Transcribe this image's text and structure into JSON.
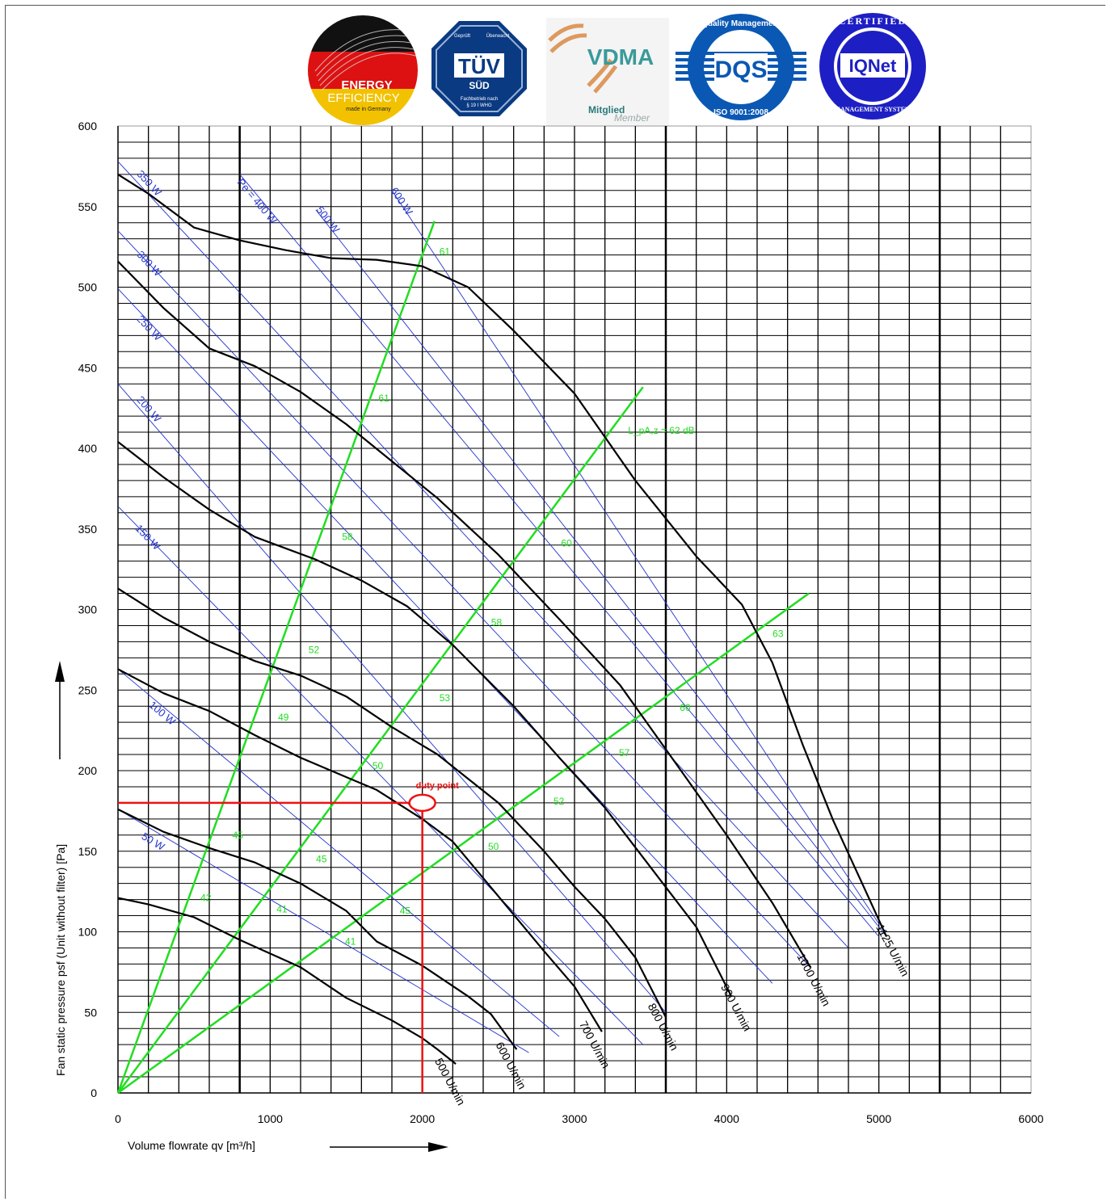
{
  "logos": {
    "energy": {
      "line1": "ENERGY",
      "line2": "EFFICIENCY",
      "line3": "made in Germany"
    },
    "tuv": {
      "top_left": "Geprüft",
      "top_right": "Überwacht",
      "main": "TÜV",
      "sub": "SÜD",
      "bottom1": "Fachbetrieb nach",
      "bottom2": "§ 19 I WHG"
    },
    "vdma": {
      "main": "VDMA",
      "sub1": "Mitglied",
      "sub2": "Member"
    },
    "dqs": {
      "top": "Quality Management",
      "main": "DQS",
      "bottom": "ISO 9001:2008"
    },
    "iqnet": {
      "top": "CERTIFIED",
      "main": "IQNet",
      "bottom": "MANAGEMENT SYSTEM"
    }
  },
  "chart_data": {
    "type": "line",
    "xlabel": "Volume flowrate qv [m³/h]",
    "ylabel": "Fan static pressure psf (Unit without filter) [Pa]",
    "xlim": [
      0,
      6000
    ],
    "ylim": [
      0,
      600
    ],
    "x_ticks": [
      0,
      1000,
      2000,
      3000,
      4000,
      5000,
      6000
    ],
    "y_ticks": [
      0,
      50,
      100,
      150,
      200,
      250,
      300,
      350,
      400,
      450,
      500,
      550,
      600
    ],
    "x_tick_labels": [
      "0",
      "1000",
      "2000",
      "3000",
      "4000",
      "5000",
      "6000"
    ],
    "y_tick_labels": [
      "0",
      "50",
      "100",
      "150",
      "200",
      "250",
      "300",
      "350",
      "400",
      "450",
      "500",
      "550",
      "600"
    ],
    "grid": true,
    "colors": {
      "speed": "#000000",
      "power": "#2233cc",
      "noise": "#22dd22",
      "duty": "#ee1111"
    },
    "speed_curves": [
      {
        "name": "500 U/min",
        "label_at": [
          2080,
          20
        ],
        "points": [
          [
            0,
            121
          ],
          [
            200,
            117
          ],
          [
            500,
            109
          ],
          [
            800,
            95
          ],
          [
            1200,
            78
          ],
          [
            1500,
            59
          ],
          [
            1800,
            45
          ],
          [
            2000,
            34
          ],
          [
            2100,
            27
          ],
          [
            2220,
            18
          ]
        ]
      },
      {
        "name": "600 U/min",
        "label_at": [
          2480,
          30
        ],
        "points": [
          [
            0,
            176
          ],
          [
            300,
            162
          ],
          [
            600,
            152
          ],
          [
            900,
            143
          ],
          [
            1200,
            130
          ],
          [
            1500,
            113
          ],
          [
            1700,
            94
          ],
          [
            2000,
            79
          ],
          [
            2300,
            60
          ],
          [
            2450,
            49
          ],
          [
            2620,
            27
          ]
        ]
      },
      {
        "name": "700 U/min",
        "label_at": [
          3030,
          43
        ],
        "points": [
          [
            0,
            263
          ],
          [
            300,
            248
          ],
          [
            600,
            237
          ],
          [
            900,
            222
          ],
          [
            1200,
            208
          ],
          [
            1500,
            196
          ],
          [
            1700,
            188
          ],
          [
            2000,
            170
          ],
          [
            2200,
            156
          ],
          [
            2500,
            122
          ],
          [
            2800,
            88
          ],
          [
            3000,
            66
          ],
          [
            3180,
            38
          ]
        ]
      },
      {
        "name": "800 U/min",
        "label_at": [
          3480,
          54
        ],
        "points": [
          [
            0,
            313
          ],
          [
            300,
            295
          ],
          [
            600,
            280
          ],
          [
            900,
            268
          ],
          [
            1200,
            259
          ],
          [
            1500,
            246
          ],
          [
            1800,
            227
          ],
          [
            2100,
            210
          ],
          [
            2500,
            180
          ],
          [
            2800,
            150
          ],
          [
            3000,
            128
          ],
          [
            3200,
            108
          ],
          [
            3400,
            84
          ],
          [
            3600,
            47
          ]
        ]
      },
      {
        "name": "900 U/min",
        "label_at": [
          3960,
          66
        ],
        "points": [
          [
            0,
            404
          ],
          [
            300,
            382
          ],
          [
            600,
            362
          ],
          [
            900,
            345
          ],
          [
            1300,
            331
          ],
          [
            1600,
            318
          ],
          [
            1900,
            302
          ],
          [
            2200,
            278
          ],
          [
            2600,
            240
          ],
          [
            2900,
            208
          ],
          [
            3200,
            177
          ],
          [
            3500,
            140
          ],
          [
            3800,
            103
          ],
          [
            4030,
            60
          ]
        ]
      },
      {
        "name": "1000 U/min",
        "label_at": [
          4460,
          85
        ],
        "points": [
          [
            0,
            516
          ],
          [
            300,
            487
          ],
          [
            600,
            462
          ],
          [
            900,
            451
          ],
          [
            1200,
            435
          ],
          [
            1500,
            415
          ],
          [
            1800,
            392
          ],
          [
            2100,
            369
          ],
          [
            2500,
            334
          ],
          [
            2900,
            294
          ],
          [
            3300,
            253
          ],
          [
            3700,
            200
          ],
          [
            4000,
            160
          ],
          [
            4300,
            118
          ],
          [
            4550,
            78
          ]
        ]
      },
      {
        "name": "1125 U/min",
        "label_at": [
          4980,
          103
        ],
        "points": [
          [
            0,
            570
          ],
          [
            200,
            558
          ],
          [
            500,
            537
          ],
          [
            800,
            529
          ],
          [
            1100,
            523
          ],
          [
            1400,
            518
          ],
          [
            1700,
            517
          ],
          [
            2000,
            513
          ],
          [
            2300,
            500
          ],
          [
            2600,
            473
          ],
          [
            3000,
            434
          ],
          [
            3400,
            380
          ],
          [
            3800,
            333
          ],
          [
            4100,
            303
          ],
          [
            4300,
            267
          ],
          [
            4500,
            216
          ],
          [
            4700,
            169
          ],
          [
            4900,
            128
          ],
          [
            5050,
            97
          ]
        ]
      }
    ],
    "power_lines": [
      {
        "name": "50 W",
        "label_at": [
          150,
          158
        ],
        "start": [
          0,
          176
        ],
        "end": [
          2700,
          25
        ]
      },
      {
        "name": "100 W",
        "label_at": [
          200,
          240
        ],
        "start": [
          0,
          263
        ],
        "end": [
          2900,
          35
        ]
      },
      {
        "name": "150 W",
        "label_at": [
          110,
          350
        ],
        "start": [
          0,
          364
        ],
        "end": [
          3450,
          30
        ]
      },
      {
        "name": "200 W",
        "label_at": [
          120,
          430
        ],
        "start": [
          0,
          440
        ],
        "end": [
          3600,
          50
        ]
      },
      {
        "name": "250 W",
        "label_at": [
          120,
          480
        ],
        "start": [
          0,
          499
        ],
        "end": [
          4300,
          68
        ]
      },
      {
        "name": "300 W",
        "label_at": [
          120,
          520
        ],
        "start": [
          0,
          535
        ],
        "end": [
          4550,
          78
        ]
      },
      {
        "name": "350 W",
        "label_at": [
          120,
          570
        ],
        "start": [
          0,
          578
        ],
        "end": [
          4800,
          90
        ]
      },
      {
        "name": "Pe = 400 W",
        "label_at": [
          780,
          565
        ],
        "start": [
          800,
          570
        ],
        "end": [
          5000,
          97
        ]
      },
      {
        "name": "500 W",
        "label_at": [
          1300,
          548
        ],
        "start": [
          1300,
          548
        ],
        "end": [
          5050,
          97
        ]
      },
      {
        "name": "600 W",
        "label_at": [
          1790,
          560
        ],
        "start": [
          1800,
          560
        ],
        "end": [
          5000,
          105
        ]
      }
    ],
    "noise_lines": [
      {
        "start": [
          0,
          0
        ],
        "end": [
          2080,
          541
        ],
        "labels": [
          {
            "t": "42",
            "at": [
              510,
              121
            ]
          },
          {
            "t": "45",
            "at": [
              720,
              160
            ]
          },
          {
            "t": "49",
            "at": [
              1020,
              233
            ]
          },
          {
            "t": "52",
            "at": [
              1220,
              275
            ]
          },
          {
            "t": "58",
            "at": [
              1440,
              345
            ]
          },
          {
            "t": "61",
            "at": [
              1680,
              431
            ]
          },
          {
            "t": "61",
            "at": [
              2080,
              522
            ]
          }
        ]
      },
      {
        "start": [
          0,
          0
        ],
        "end": [
          3450,
          438
        ],
        "labels": [
          {
            "t": "41",
            "at": [
              1010,
              114
            ]
          },
          {
            "t": "45",
            "at": [
              1270,
              145
            ]
          },
          {
            "t": "50",
            "at": [
              1640,
              203
            ]
          },
          {
            "t": "53",
            "at": [
              2080,
              245
            ]
          },
          {
            "t": "58",
            "at": [
              2420,
              292
            ]
          },
          {
            "t": "60",
            "at": [
              2880,
              341
            ]
          },
          {
            "t": "L_pA,z = 62 dB",
            "at": [
              3320,
              411
            ]
          }
        ]
      },
      {
        "start": [
          0,
          0
        ],
        "end": [
          4540,
          310
        ],
        "labels": [
          {
            "t": "41",
            "at": [
              1460,
              94
            ]
          },
          {
            "t": "45",
            "at": [
              1820,
              113
            ]
          },
          {
            "t": "50",
            "at": [
              2400,
              153
            ]
          },
          {
            "t": "52",
            "at": [
              2830,
              181
            ]
          },
          {
            "t": "57",
            "at": [
              3260,
              211
            ]
          },
          {
            "t": "60",
            "at": [
              3660,
              239
            ]
          },
          {
            "t": "63",
            "at": [
              4270,
              285
            ]
          }
        ]
      }
    ],
    "duty_point": {
      "label": "duty point",
      "x": 2000,
      "y": 180
    }
  }
}
